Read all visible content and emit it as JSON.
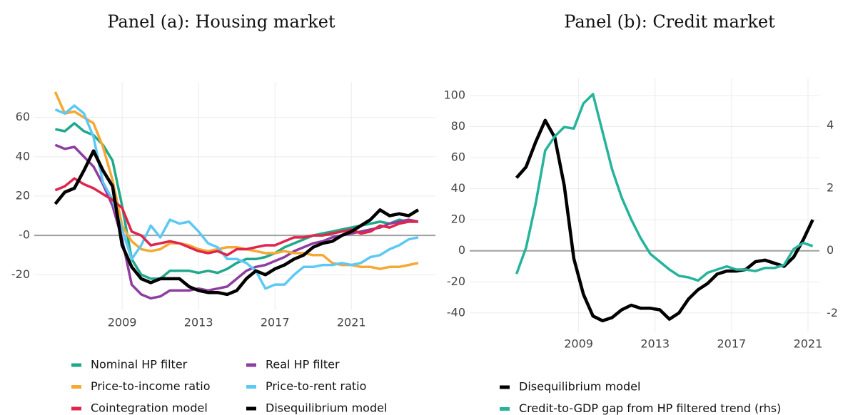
{
  "chart_data": [
    {
      "type": "line",
      "title": "Panel (a): Housing market",
      "x": [
        2005.5,
        2006,
        2006.5,
        2007,
        2007.5,
        2008,
        2008.5,
        2009,
        2009.5,
        2010,
        2010.5,
        2011,
        2011.5,
        2012,
        2012.5,
        2013,
        2013.5,
        2014,
        2014.5,
        2015,
        2015.5,
        2016,
        2016.5,
        2017,
        2017.5,
        2018,
        2018.5,
        2019,
        2019.5,
        2020,
        2020.5,
        2021,
        2021.5,
        2022,
        2022.5,
        2023,
        2023.5,
        2024,
        2024.5
      ],
      "series": [
        {
          "name": "Nominal HP filter",
          "color": "#1fa98c",
          "values": [
            54,
            53,
            57,
            53,
            51,
            46,
            38,
            15,
            -12,
            -20,
            -22,
            -22,
            -18,
            -18,
            -18,
            -19,
            -18,
            -19,
            -17,
            -14,
            -12,
            -12,
            -11,
            -9,
            -6,
            -4,
            -2,
            0,
            1,
            2,
            3,
            4,
            5,
            6,
            7,
            6,
            8,
            7,
            7
          ]
        },
        {
          "name": "Real HP filter",
          "color": "#8e3ea0",
          "values": [
            46,
            44,
            45,
            40,
            35,
            26,
            15,
            -2,
            -25,
            -30,
            -32,
            -31,
            -28,
            -28,
            -28,
            -27,
            -28,
            -27,
            -26,
            -22,
            -18,
            -16,
            -15,
            -13,
            -11,
            -8,
            -6,
            -4,
            -3,
            -1,
            0,
            1,
            2,
            3,
            4,
            6,
            7,
            8,
            7
          ]
        },
        {
          "name": "Price-to-income ratio",
          "color": "#f5a832",
          "values": [
            73,
            62,
            63,
            60,
            57,
            45,
            28,
            5,
            -3,
            -7,
            -8,
            -7,
            -4,
            -4,
            -5,
            -7,
            -8,
            -7,
            -6,
            -6,
            -7,
            -8,
            -9,
            -9,
            -8,
            -9,
            -9,
            -10,
            -10,
            -14,
            -15,
            -15,
            -16,
            -16,
            -17,
            -16,
            -16,
            -15,
            -14
          ]
        },
        {
          "name": "Price-to-rent ratio",
          "color": "#5ec8f5",
          "values": [
            64,
            62,
            66,
            62,
            50,
            27,
            18,
            3,
            -12,
            -5,
            5,
            -1,
            8,
            6,
            7,
            2,
            -4,
            -6,
            -12,
            -12,
            -14,
            -18,
            -27,
            -25,
            -25,
            -20,
            -16,
            -16,
            -15,
            -15,
            -14,
            -15,
            -14,
            -11,
            -10,
            -7,
            -5,
            -2,
            -1
          ]
        },
        {
          "name": "Cointegration model",
          "color": "#e0254b",
          "values": [
            23,
            25,
            29,
            26,
            24,
            21,
            18,
            14,
            2,
            0,
            -5,
            -4,
            -3,
            -4,
            -6,
            -8,
            -9,
            -8,
            -10,
            -7,
            -7,
            -6,
            -5,
            -5,
            -3,
            -1,
            -1,
            0,
            0,
            1,
            2,
            3,
            1,
            2,
            5,
            4,
            6,
            7,
            7
          ]
        },
        {
          "name": "Disequilibrium model",
          "color": "#000000",
          "values": [
            16,
            22,
            24,
            33,
            43,
            33,
            25,
            -5,
            -16,
            -22,
            -24,
            -22,
            -22,
            -22,
            -26,
            -28,
            -29,
            -29,
            -30,
            -28,
            -22,
            -18,
            -20,
            -17,
            -15,
            -12,
            -10,
            -6,
            -4,
            -3,
            0,
            2,
            5,
            8,
            13,
            10,
            11,
            10,
            13
          ]
        }
      ],
      "xlim": [
        2004.4,
        2025.4
      ],
      "ylim": [
        -38,
        78
      ],
      "xticks": [
        2009,
        2013,
        2017,
        2021
      ],
      "yticks": [
        -20,
        {
          "value": 0,
          "label": "-0"
        },
        20,
        40,
        60
      ],
      "grid": true,
      "legend": "bottom"
    },
    {
      "type": "line",
      "title": "Panel (b): Credit market",
      "x": [
        2005.75,
        2006.25,
        2006.75,
        2007.25,
        2007.75,
        2008.25,
        2008.75,
        2009.25,
        2009.75,
        2010.25,
        2010.75,
        2011.25,
        2011.75,
        2012.25,
        2012.75,
        2013.25,
        2013.75,
        2014.25,
        2014.75,
        2015.25,
        2015.75,
        2016.25,
        2016.75,
        2017.25,
        2017.75,
        2018.25,
        2018.75,
        2019.25,
        2019.75,
        2020.25,
        2020.75,
        2021.25
      ],
      "series": [
        {
          "name": "Disequilibrium model",
          "color": "#000000",
          "values": [
            47,
            54,
            70,
            84,
            73,
            42,
            -5,
            -28,
            -42,
            -45,
            -43,
            -38,
            -35,
            -37,
            -37,
            -38,
            -44,
            -40,
            -31,
            -25,
            -21,
            -15,
            -13,
            -13,
            -12,
            -7,
            -6,
            -8,
            -10,
            -4,
            7,
            20
          ]
        },
        {
          "name": "Credit-to-GDP gap from HP filtered trend (rhs)",
          "color": "#26b39c",
          "axis": "y2",
          "values": [
            -0.74,
            0.1,
            1.5,
            3.2,
            3.65,
            3.95,
            3.9,
            4.7,
            5.0,
            3.8,
            2.6,
            1.7,
            1.0,
            0.4,
            -0.1,
            -0.35,
            -0.6,
            -0.8,
            -0.85,
            -0.95,
            -0.7,
            -0.6,
            -0.5,
            -0.6,
            -0.6,
            -0.65,
            -0.55,
            -0.55,
            -0.45,
            0.05,
            0.25,
            0.15
          ]
        }
      ],
      "xlim": [
        2003.3,
        2021.6
      ],
      "ylim": [
        -52,
        111
      ],
      "y2lim": [
        -2.58,
        5.5
      ],
      "xticks": [
        2009,
        2013,
        2017,
        2021
      ],
      "yticks": [
        -40,
        -20,
        0,
        20,
        40,
        60,
        80,
        100
      ],
      "y2ticks": [
        -2,
        0,
        2,
        4
      ],
      "grid": true,
      "legend": "bottom"
    }
  ]
}
